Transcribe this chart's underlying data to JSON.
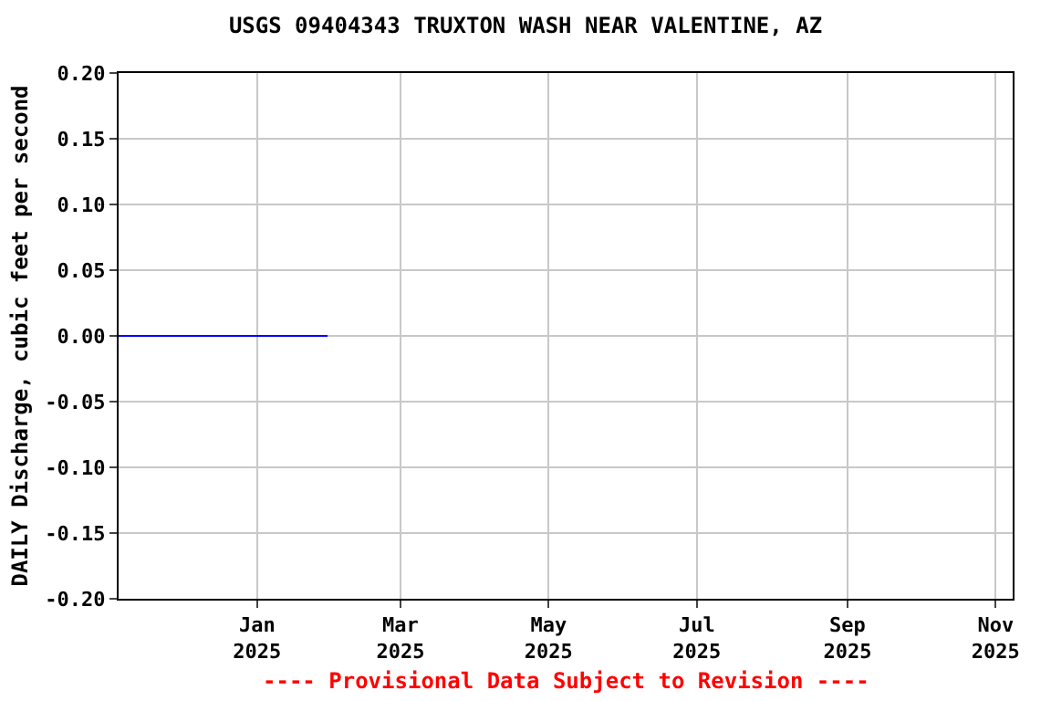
{
  "chart_data": {
    "type": "line",
    "title": "USGS 09404343 TRUXTON WASH NEAR VALENTINE, AZ",
    "ylabel": "DAILY Discharge, cubic feet per second",
    "x": [
      "2024-11-05",
      "2025-01-30"
    ],
    "series": [
      {
        "color": "#0000ff",
        "values": [
          0,
          0
        ]
      }
    ],
    "xlim": [
      "2024-11-05",
      "2025-11-08"
    ],
    "xticks": [
      {
        "value": "2025-01-01",
        "label": "Jan\n2025"
      },
      {
        "value": "2025-03-01",
        "label": "Mar\n2025"
      },
      {
        "value": "2025-05-01",
        "label": "May\n2025"
      },
      {
        "value": "2025-07-01",
        "label": "Jul\n2025"
      },
      {
        "value": "2025-09-01",
        "label": "Sep\n2025"
      },
      {
        "value": "2025-11-01",
        "label": "Nov\n2025"
      }
    ],
    "ylim": [
      -0.2,
      0.2
    ],
    "yticks": [
      {
        "value": -0.2,
        "label": "-0.20"
      },
      {
        "value": -0.15,
        "label": "-0.15"
      },
      {
        "value": -0.1,
        "label": "-0.10"
      },
      {
        "value": -0.05,
        "label": "-0.05"
      },
      {
        "value": 0,
        "label": "0.00"
      },
      {
        "value": 0.05,
        "label": "0.05"
      },
      {
        "value": 0.1,
        "label": "0.10"
      },
      {
        "value": 0.15,
        "label": "0.15"
      },
      {
        "value": 0.2,
        "label": "0.20"
      }
    ],
    "grid": true,
    "marker": "none",
    "line_style": "solid",
    "annotations": [
      "---- Provisional Data Subject to Revision ----"
    ]
  }
}
